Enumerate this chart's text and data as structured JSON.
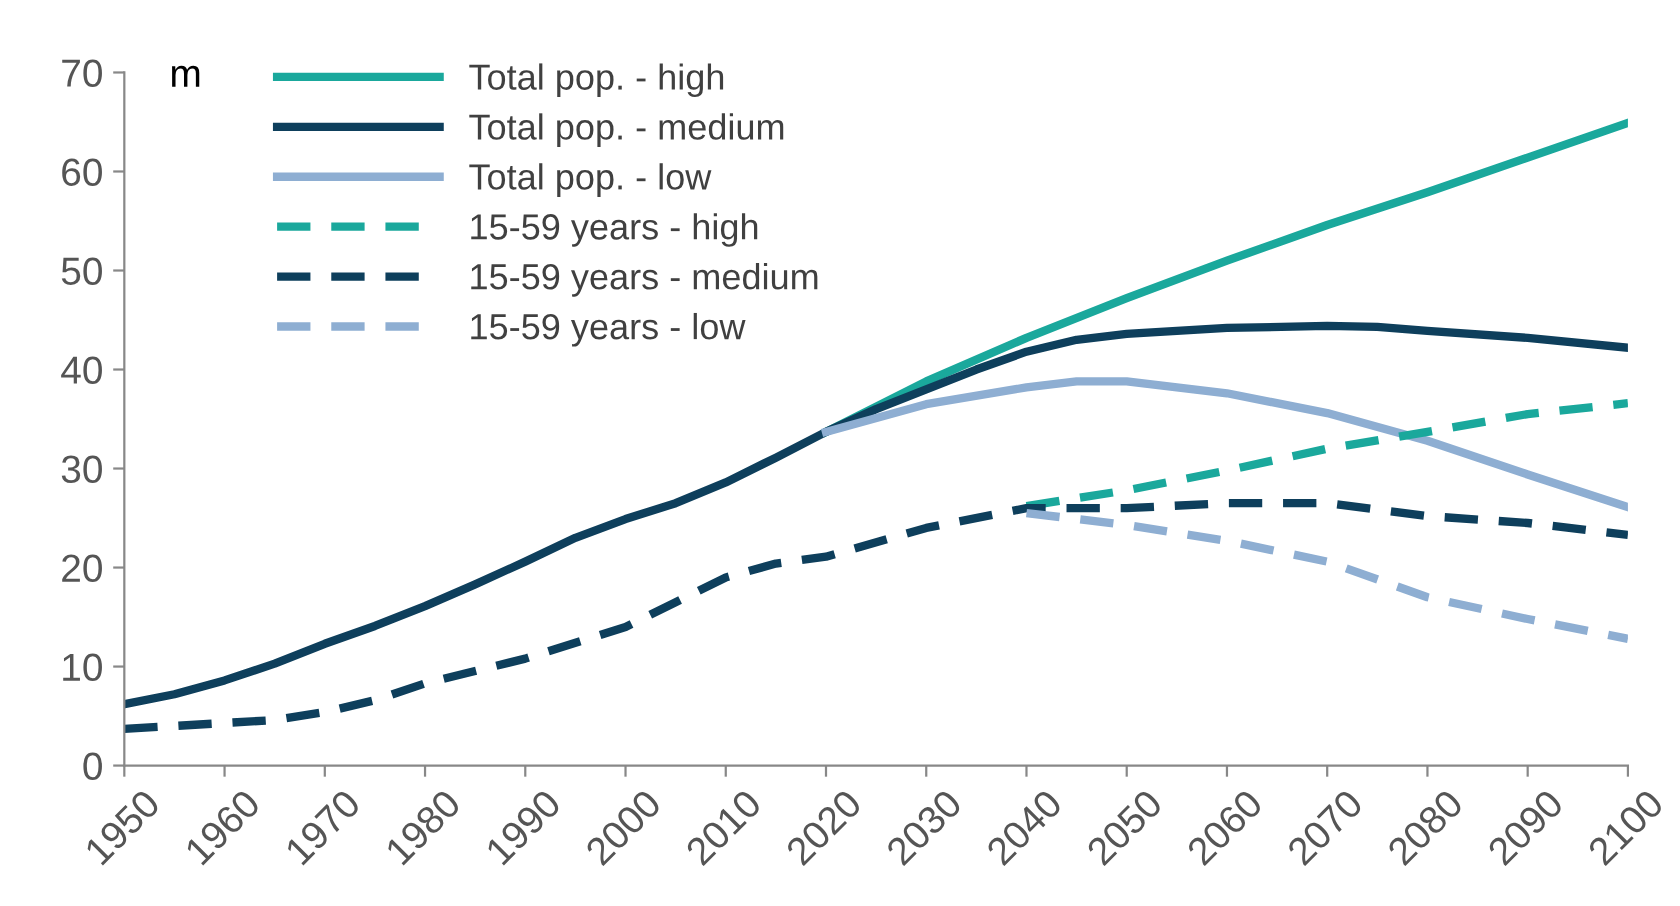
{
  "chart_data": {
    "type": "line",
    "ylabel": "m",
    "xlim": [
      1950,
      2100
    ],
    "xticks": [
      1950,
      1960,
      1970,
      1980,
      1990,
      2000,
      2010,
      2020,
      2030,
      2040,
      2050,
      2060,
      2070,
      2080,
      2090,
      2100
    ],
    "ylim": [
      0,
      70
    ],
    "yticks": [
      0,
      10,
      20,
      30,
      40,
      50,
      60,
      70
    ],
    "grid": false,
    "legend": "top left",
    "marker": "none",
    "series": [
      {
        "name": "Total pop. - high",
        "color": "#1aa89c",
        "line_style": "solid",
        "x": [
          2020,
          2030,
          2040,
          2050,
          2060,
          2070,
          2080,
          2090,
          2100
        ],
        "values": [
          33.7,
          38.8,
          43.2,
          47.2,
          51.0,
          54.6,
          57.9,
          61.4,
          64.9
        ]
      },
      {
        "name": "Total pop. - medium",
        "color": "#0e3f5c",
        "line_style": "solid",
        "x": [
          1950,
          1955,
          1960,
          1965,
          1970,
          1975,
          1980,
          1985,
          1990,
          1995,
          2000,
          2005,
          2010,
          2015,
          2020,
          2025,
          2030,
          2035,
          2040,
          2045,
          2050,
          2060,
          2070,
          2075,
          2080,
          2090,
          2100
        ],
        "values": [
          6.2,
          7.2,
          8.6,
          10.3,
          12.3,
          14.1,
          16.1,
          18.3,
          20.6,
          23.0,
          24.9,
          26.5,
          28.6,
          31.1,
          33.7,
          36.0,
          38.0,
          40.0,
          41.8,
          43.0,
          43.6,
          44.2,
          44.4,
          44.3,
          43.9,
          43.2,
          42.2
        ]
      },
      {
        "name": "Total pop. - low",
        "color": "#8eaed2",
        "line_style": "solid",
        "x": [
          2020,
          2030,
          2040,
          2045,
          2050,
          2060,
          2070,
          2080,
          2090,
          2100
        ],
        "values": [
          33.7,
          36.5,
          38.2,
          38.8,
          38.8,
          37.6,
          35.6,
          32.8,
          29.4,
          26.1
        ]
      },
      {
        "name": "15-59 years - high",
        "color": "#1aa89c",
        "line_style": "dashed",
        "x": [
          2040,
          2050,
          2060,
          2070,
          2080,
          2090,
          2100
        ],
        "values": [
          26.2,
          27.8,
          29.8,
          32.0,
          33.7,
          35.5,
          36.6
        ]
      },
      {
        "name": "15-59 years - medium",
        "color": "#0e3f5c",
        "line_style": "dashed",
        "x": [
          1950,
          1960,
          1965,
          1970,
          1975,
          1980,
          1990,
          2000,
          2005,
          2010,
          2015,
          2020,
          2030,
          2040,
          2050,
          2060,
          2070,
          2080,
          2090,
          2100
        ],
        "values": [
          3.7,
          4.3,
          4.6,
          5.4,
          6.6,
          8.3,
          10.8,
          14.0,
          16.5,
          19.0,
          20.4,
          21.1,
          24.0,
          26.0,
          26.0,
          26.5,
          26.5,
          25.2,
          24.5,
          23.3
        ]
      },
      {
        "name": "15-59 years - low",
        "color": "#8eaed2",
        "line_style": "dashed",
        "x": [
          2040,
          2050,
          2060,
          2070,
          2080,
          2090,
          2100
        ],
        "values": [
          25.5,
          24.3,
          22.7,
          20.6,
          17.0,
          14.8,
          12.8
        ]
      }
    ]
  }
}
